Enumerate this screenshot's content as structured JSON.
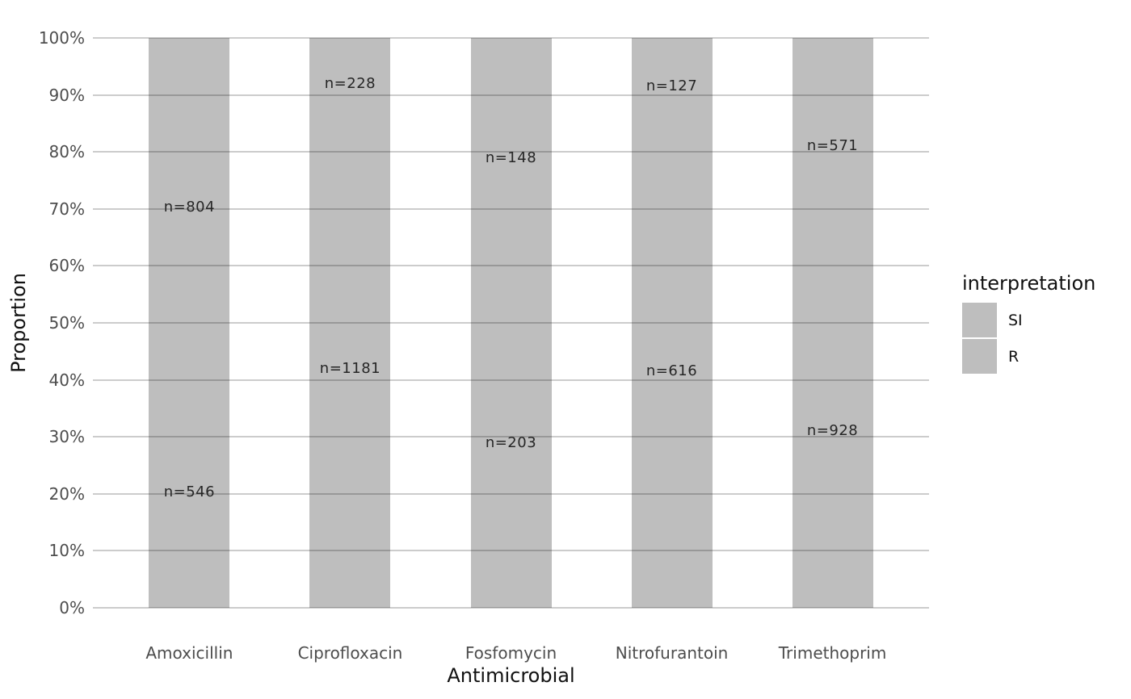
{
  "chart_data": {
    "type": "bar",
    "stacked": true,
    "title": "",
    "xlabel": "Antimicrobial",
    "ylabel": "Proportion",
    "categories": [
      "Amoxicillin",
      "Ciprofloxacin",
      "Fosfomycin",
      "Nitrofurantoin",
      "Trimethoprim"
    ],
    "series": [
      {
        "name": "R",
        "values": [
          546,
          1181,
          203,
          616,
          928
        ],
        "color": "#bebebe"
      },
      {
        "name": "SI",
        "values": [
          804,
          228,
          148,
          127,
          571
        ],
        "color": "#bebebe"
      }
    ],
    "stack_order_bottom_to_top": [
      "R",
      "SI"
    ],
    "bar_label_format": "n=",
    "bar_labels": {
      "R": [
        "n=546",
        "n=1181",
        "n=203",
        "n=616",
        "n=928"
      ],
      "SI": [
        "n=804",
        "n=228",
        "n=148",
        "n=127",
        "n=571"
      ]
    },
    "y_ticks": [
      "0%",
      "10%",
      "20%",
      "30%",
      "40%",
      "50%",
      "60%",
      "70%",
      "80%",
      "90%",
      "100%"
    ],
    "ylim": [
      0,
      1
    ],
    "grid": "horizontal",
    "legend": {
      "title": "interpretation",
      "position": "right",
      "items": [
        {
          "label": "SI",
          "color": "#bebebe"
        },
        {
          "label": "R",
          "color": "#bebebe"
        }
      ]
    }
  },
  "colors": {
    "bar_fill": "#bebebe",
    "gridline": "#cccccc",
    "tick_text": "#4d4d4d",
    "bar_label_text": "#262626",
    "axis_title_text": "#111111",
    "background": "#ffffff"
  }
}
